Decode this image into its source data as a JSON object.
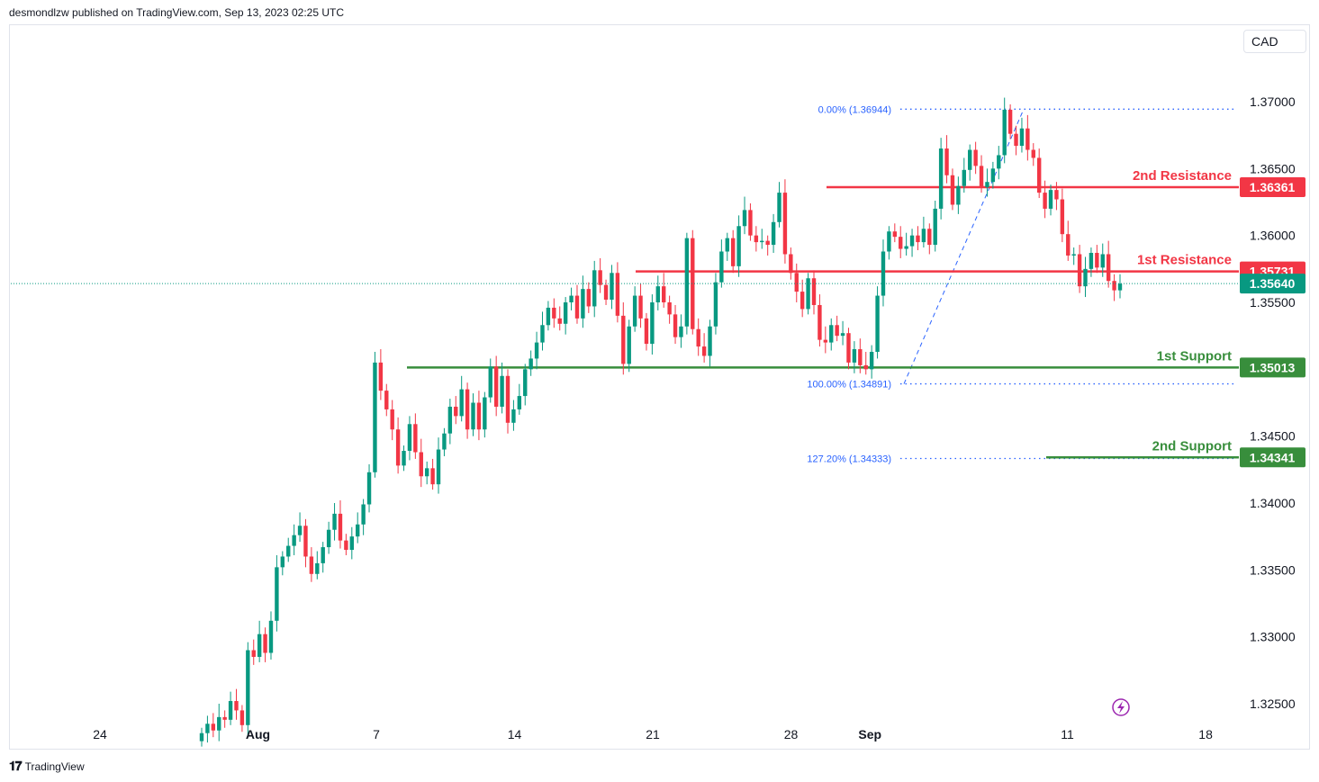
{
  "header": {
    "publisher_text": "desmondlzw published on TradingView.com, Sep 13, 2023 02:25 UTC"
  },
  "currency_label": "CAD",
  "footer": {
    "brand": "TradingView",
    "logo_glyph": "𝟏𝟕"
  },
  "colors": {
    "up": "#089981",
    "down": "#f23645",
    "resistance": "#f23645",
    "support": "#388e3c",
    "fib": "#2962ff",
    "current": "#089981"
  },
  "chart_data": {
    "type": "candlestick",
    "symbol_currency": "CAD",
    "ylim": [
      1.322,
      1.373
    ],
    "y_ticks": [
      "1.37000",
      "1.36500",
      "1.36000",
      "1.35500",
      "1.34500",
      "1.34000",
      "1.33500",
      "1.33000",
      "1.32500"
    ],
    "x_ticks": [
      {
        "label": "24",
        "date": "2023-07-24"
      },
      {
        "label": "Aug",
        "date": "2023-08-01",
        "bold": true
      },
      {
        "label": "7",
        "date": "2023-08-07"
      },
      {
        "label": "14",
        "date": "2023-08-14"
      },
      {
        "label": "21",
        "date": "2023-08-21"
      },
      {
        "label": "28",
        "date": "2023-08-28"
      },
      {
        "label": "Sep",
        "date": "2023-09-01",
        "bold": true
      },
      {
        "label": "11",
        "date": "2023-09-11"
      },
      {
        "label": "18",
        "date": "2023-09-18"
      }
    ],
    "levels": [
      {
        "name": "2nd Resistance",
        "value": "1.36361",
        "kind": "resistance"
      },
      {
        "name": "1st Resistance",
        "value": "1.35731",
        "kind": "resistance"
      },
      {
        "name": "1st Support",
        "value": "1.35013",
        "kind": "support"
      },
      {
        "name": "2nd Support",
        "value": "1.34341",
        "kind": "support"
      }
    ],
    "current_price": "1.35640",
    "fibonacci": [
      {
        "label": "0.00% (1.36944)",
        "value": 1.36944
      },
      {
        "label": "100.00% (1.34891)",
        "value": 1.34891
      },
      {
        "label": "127.20% (1.34333)",
        "value": 1.34333
      }
    ],
    "closes": [
      1.3228,
      1.3235,
      1.323,
      1.324,
      1.3238,
      1.3252,
      1.3245,
      1.3234,
      1.329,
      1.3285,
      1.3302,
      1.3288,
      1.3312,
      1.3352,
      1.336,
      1.3368,
      1.3376,
      1.3383,
      1.336,
      1.3347,
      1.3355,
      1.3367,
      1.338,
      1.3392,
      1.3372,
      1.3365,
      1.3375,
      1.3384,
      1.3399,
      1.3423,
      1.3505,
      1.3484,
      1.347,
      1.3455,
      1.3428,
      1.3439,
      1.3459,
      1.3438,
      1.342,
      1.3426,
      1.3414,
      1.344,
      1.3452,
      1.3472,
      1.3465,
      1.3485,
      1.3455,
      1.3475,
      1.3455,
      1.3479,
      1.3502,
      1.3472,
      1.3495,
      1.346,
      1.347,
      1.348,
      1.35,
      1.3508,
      1.352,
      1.3533,
      1.3546,
      1.3538,
      1.3534,
      1.355,
      1.3555,
      1.3538,
      1.356,
      1.3547,
      1.3574,
      1.3563,
      1.3552,
      1.3572,
      1.354,
      1.3504,
      1.3532,
      1.3555,
      1.3538,
      1.3519,
      1.355,
      1.3562,
      1.355,
      1.3541,
      1.3524,
      1.3532,
      1.3598,
      1.353,
      1.3517,
      1.351,
      1.3532,
      1.3565,
      1.3588,
      1.3598,
      1.3577,
      1.3607,
      1.3619,
      1.36,
      1.3595,
      1.3596,
      1.3593,
      1.361,
      1.3632,
      1.3586,
      1.3572,
      1.3558,
      1.3545,
      1.3568,
      1.3548,
      1.3522,
      1.352,
      1.3533,
      1.3525,
      1.3527,
      1.3505,
      1.3515,
      1.3503,
      1.35,
      1.3513,
      1.3555,
      1.3588,
      1.3603,
      1.3599,
      1.359,
      1.3592,
      1.36,
      1.3595,
      1.3605,
      1.3593,
      1.362,
      1.3665,
      1.3645,
      1.3623,
      1.3637,
      1.3649,
      1.3664,
      1.3652,
      1.3636,
      1.364,
      1.365,
      1.366,
      1.3694,
      1.3676,
      1.3667,
      1.368,
      1.3664,
      1.3658,
      1.3632,
      1.362,
      1.3634,
      1.3627,
      1.3601,
      1.3585,
      1.3586,
      1.3562,
      1.3575,
      1.3587,
      1.3576,
      1.3586,
      1.3566,
      1.3559,
      1.3564
    ]
  }
}
